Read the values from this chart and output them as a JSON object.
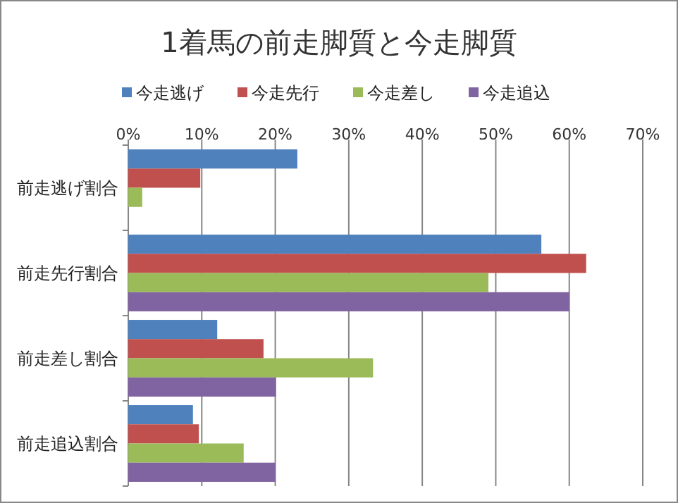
{
  "chart_data": {
    "type": "bar",
    "orientation": "horizontal",
    "title": "1着馬の前走脚質と今走脚質",
    "categories": [
      "前走逃げ割合",
      "前走先行割合",
      "前走差し割合",
      "前走追込割合"
    ],
    "series": [
      {
        "name": "今走逃げ",
        "color": "#4f81bd",
        "values": [
          23.0,
          56.2,
          12.1,
          8.8
        ]
      },
      {
        "name": "今走先行",
        "color": "#c0504d",
        "values": [
          9.8,
          62.3,
          18.4,
          9.6
        ]
      },
      {
        "name": "今走差し",
        "color": "#9bbb59",
        "values": [
          1.9,
          49.0,
          33.3,
          15.7
        ]
      },
      {
        "name": "今走追込",
        "color": "#8064a2",
        "values": [
          0,
          60.0,
          20.1,
          20.0
        ]
      }
    ],
    "xlim": [
      0,
      70
    ],
    "xticks": [
      {
        "value": 0,
        "label": "0%"
      },
      {
        "value": 10,
        "label": "10%"
      },
      {
        "value": 20,
        "label": "20%"
      },
      {
        "value": 30,
        "label": "30%"
      },
      {
        "value": 40,
        "label": "40%"
      },
      {
        "value": 50,
        "label": "50%"
      },
      {
        "value": 60,
        "label": "60%"
      },
      {
        "value": 70,
        "label": "70%"
      }
    ],
    "grid": "x",
    "legend": "top"
  }
}
